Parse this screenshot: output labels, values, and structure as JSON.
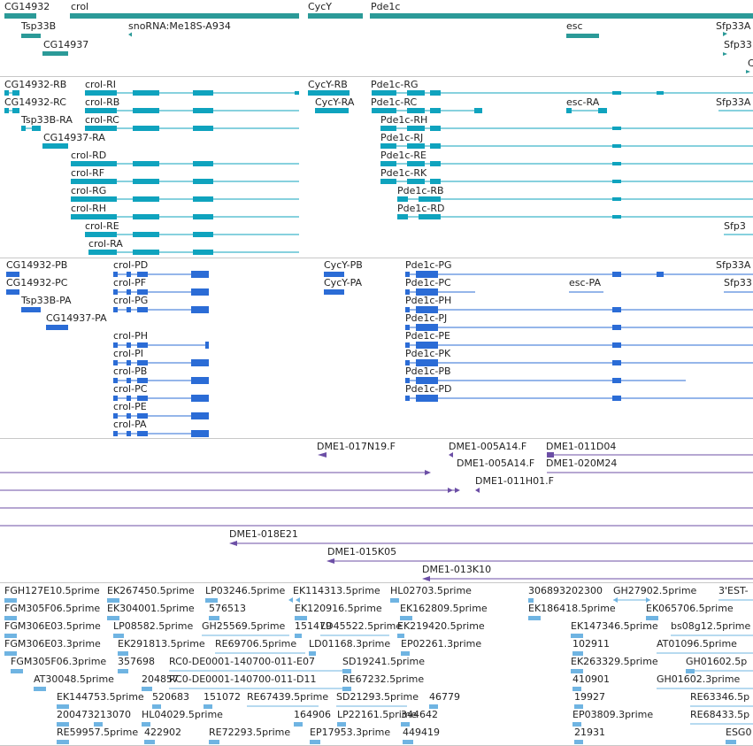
{
  "colors": {
    "gene": "#2b9a98",
    "transcript": "#0fa3be",
    "cds": "#2b6cd6",
    "clone": "#6c4fa6",
    "est": "#6fb4e2",
    "separator": "#c8c8c8",
    "text": "#222222"
  },
  "tracks": {
    "genes": {
      "labels": [
        "CG14932",
        "crol",
        "CycY",
        "Pde1c",
        "Tsp33B",
        "snoRNA:Me18S-A934",
        "esc",
        "Sfp33A",
        "CG14937",
        "Sfp33",
        "C"
      ]
    },
    "transcripts": {
      "labels": [
        "CG14932-RB",
        "crol-RI",
        "CycY-RB",
        "Pde1c-RG",
        "CG14932-RC",
        "crol-RB",
        "CycY-RA",
        "Pde1c-RC",
        "esc-RA",
        "Sfp33A",
        "Tsp33B-RA",
        "crol-RC",
        "Pde1c-RH",
        "CG14937-RA",
        "Pde1c-RJ",
        "crol-RD",
        "Pde1c-RE",
        "crol-RF",
        "Pde1c-RK",
        "crol-RG",
        "Pde1c-RB",
        "crol-RH",
        "Pde1c-RD",
        "crol-RE",
        "Sfp3",
        "crol-RA"
      ]
    },
    "cds": {
      "labels": [
        "CG14932-PB",
        "crol-PD",
        "CycY-PB",
        "Pde1c-PG",
        "Sfp33A",
        "CG14932-PC",
        "crol-PF",
        "CycY-PA",
        "Pde1c-PC",
        "esc-PA",
        "Sfp33",
        "Tsp33B-PA",
        "crol-PG",
        "Pde1c-PH",
        "CG14937-PA",
        "Pde1c-PJ",
        "crol-PH",
        "Pde1c-PE",
        "crol-PI",
        "Pde1c-PK",
        "crol-PB",
        "Pde1c-PB",
        "crol-PC",
        "Pde1c-PD",
        "crol-PE",
        "crol-PA"
      ]
    },
    "clones": {
      "labels": [
        "DME1-017N19.F",
        "DME1-005A14.F",
        "DME1-011D04",
        "DME1-005A14.F",
        "DME1-020M24",
        "DME1-011H01.F",
        "DME1-018E21",
        "DME1-015K05",
        "DME1-013K10"
      ]
    },
    "ests": {
      "labels": [
        "FGH127E10.5prime",
        "EK267450.5prime",
        "LP03246.5prime",
        "EK114313.5prime",
        "HL02703.5prime",
        "306893202300",
        "GH27902.5prime",
        "3'EST-",
        "FGM305F06.5prime",
        "EK304001.5prime",
        "576513",
        "EK120916.5prime",
        "EK162809.5prime",
        "EK186418.5prime",
        "EK065706.5prime",
        "FGM306E03.5prime",
        "LP08582.5prime",
        "GH25569.5prime",
        "151479",
        "LD45522.5prime",
        "EK219420.5prime",
        "EK147346.5prime",
        "bs08g12.5prime",
        "FGM306E03.3prime",
        "EK291813.5prime",
        "RE69706.5prime",
        "LD01168.3prime",
        "EP02261.3prime",
        "102911",
        "AT01096.5prime",
        "FGM305F06.3prime",
        "357698",
        "RC0-DE0001-140700-011-E07",
        "SD19241.5prime",
        "EK263329.5prime",
        "GH01602.5p",
        "AT30048.5prime",
        "204857",
        "RC0-DE0001-140700-011-D11",
        "RE67232.5prime",
        "410901",
        "GH01602.3prime",
        "EK144753.5prime",
        "520683",
        "151072",
        "RE67439.5prime",
        "SD21293.5prime",
        "46779",
        "19927",
        "RE63346.5p",
        "200473",
        "213070",
        "HL04029.5prime",
        "164906",
        "LP22161.5prime",
        "344642",
        "EP03809.3prime",
        "RE68433.5p",
        "RE59957.5prime",
        "422902",
        "RE72293.5prime",
        "EP17953.3prime",
        "449419",
        "21931",
        "ESG0"
      ]
    }
  }
}
